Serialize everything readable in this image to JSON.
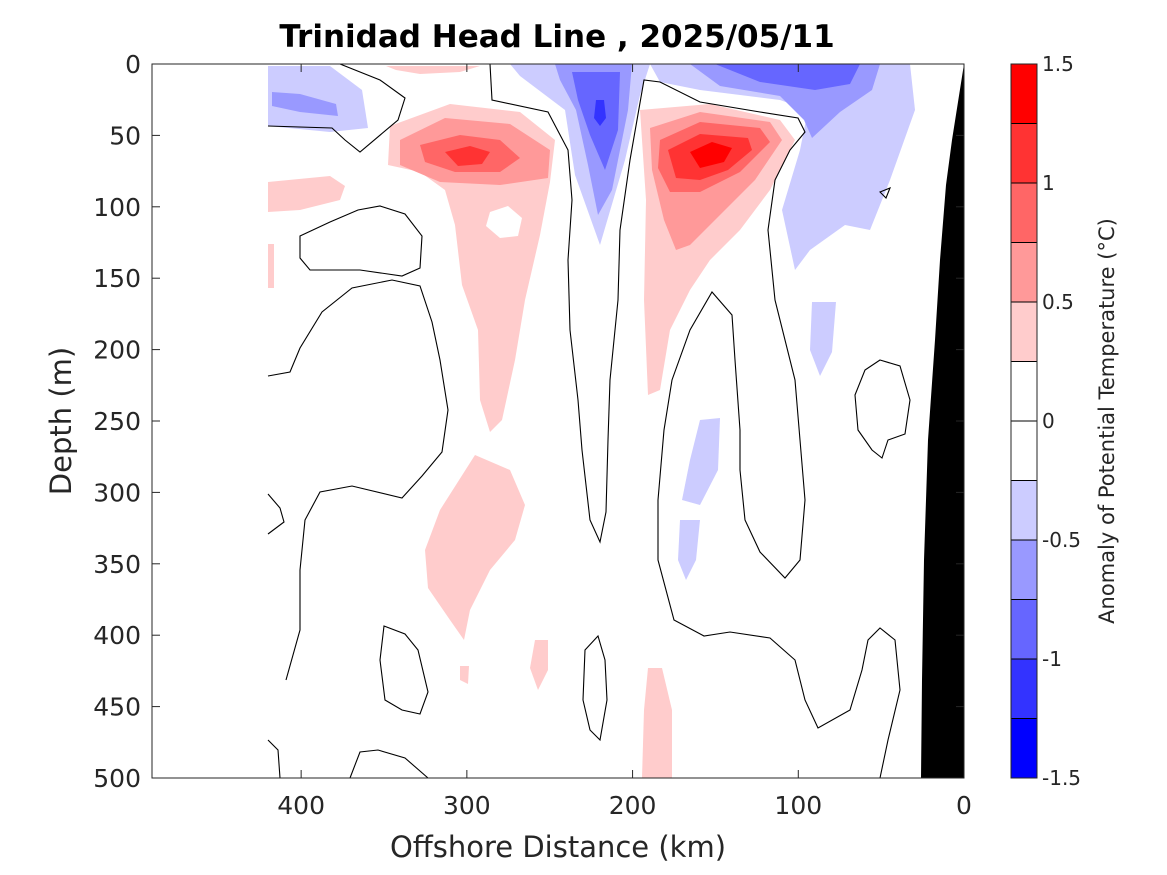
{
  "chart_data": {
    "type": "heatmap",
    "title": "Trinidad Head Line , 2025/05/11",
    "xlabel": "Offshore Distance (km)",
    "ylabel": "Depth (m)",
    "xlim": [
      490,
      0
    ],
    "ylim": [
      0,
      500
    ],
    "x_reversed": true,
    "y_reversed": true,
    "xticks": [
      "400",
      "300",
      "200",
      "100",
      "0"
    ],
    "xtick_values": [
      400,
      300,
      200,
      100,
      0
    ],
    "yticks": [
      "0",
      "50",
      "100",
      "150",
      "200",
      "250",
      "300",
      "350",
      "400",
      "450",
      "500"
    ],
    "ytick_values": [
      0,
      50,
      100,
      150,
      200,
      250,
      300,
      350,
      400,
      450,
      500
    ],
    "colorbar": {
      "label": "Anomaly of Potential Temperature (°C)",
      "range": [
        -1.5,
        1.5
      ],
      "ticks": [
        "1.5",
        "1",
        "0.5",
        "0",
        "-0.5",
        "-1",
        "-1.5"
      ],
      "tick_values": [
        1.5,
        1,
        0.5,
        0,
        -0.5,
        -1,
        -1.5
      ],
      "levels": [
        -1.5,
        -1.25,
        -1.0,
        -0.75,
        -0.5,
        -0.25,
        0.25,
        0.5,
        0.75,
        1.0,
        1.25,
        1.5
      ],
      "colors_top_to_bottom": [
        "#ff0000",
        "#ff3333",
        "#ff6666",
        "#ff9999",
        "#ffcccc",
        "#ffffff",
        "#ffffff",
        "#ccccff",
        "#9999ff",
        "#6666ff",
        "#3333ff",
        "#0000ff"
      ]
    },
    "grid": false,
    "data_extent_km": [
      420,
      0
    ],
    "features": [
      {
        "kind": "warm",
        "center_km": 300,
        "center_depth_m": 65,
        "peak_anomaly": 1.0
      },
      {
        "kind": "warm",
        "center_km": 155,
        "center_depth_m": 70,
        "peak_anomaly": 1.25
      },
      {
        "kind": "cold",
        "center_km": 220,
        "center_depth_m": 35,
        "peak_anomaly": -1.25
      },
      {
        "kind": "cold",
        "center_km": 90,
        "center_depth_m": 10,
        "peak_anomaly": -0.75
      },
      {
        "kind": "bathymetry",
        "near_km": 0,
        "depth_range_m": [
          0,
          500
        ],
        "color": "#000000"
      }
    ]
  }
}
